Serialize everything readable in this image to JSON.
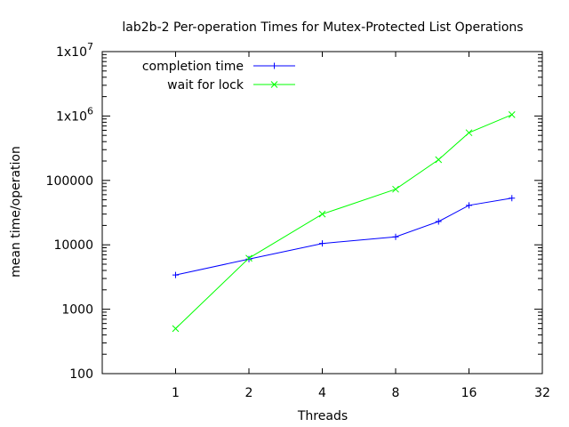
{
  "chart_data": {
    "type": "line",
    "title": "lab2b-2 Per-operation Times for Mutex-Protected List Operations",
    "xlabel": "Threads",
    "ylabel": "mean time/operation",
    "xscale": "log2",
    "yscale": "log10",
    "xlim": [
      0.5,
      32
    ],
    "ylim": [
      100,
      10000000
    ],
    "x_ticks": [
      1,
      2,
      4,
      8,
      16,
      32
    ],
    "x_tick_labels": [
      "1",
      "2",
      "4",
      "8",
      "16",
      "32"
    ],
    "y_ticks": [
      100,
      1000,
      10000,
      100000,
      1000000,
      10000000
    ],
    "y_tick_labels": [
      {
        "base": "100",
        "exp": ""
      },
      {
        "base": "1000",
        "exp": ""
      },
      {
        "base": "10000",
        "exp": ""
      },
      {
        "base": "100000",
        "exp": ""
      },
      {
        "base": "1x10",
        "exp": "6"
      },
      {
        "base": "1x10",
        "exp": "7"
      }
    ],
    "grid": false,
    "legend_position": "top-left",
    "series": [
      {
        "name": "completion time",
        "color": "#0000ff",
        "marker": "plus",
        "x": [
          1,
          2,
          4,
          8,
          12,
          16,
          24
        ],
        "y": [
          3400,
          6000,
          10500,
          13300,
          23000,
          41000,
          53000
        ]
      },
      {
        "name": "wait for lock",
        "color": "#00ff00",
        "marker": "cross",
        "x": [
          1,
          2,
          4,
          8,
          12,
          16,
          24
        ],
        "y": [
          500,
          6200,
          30000,
          73000,
          210000,
          550000,
          1050000
        ]
      }
    ]
  }
}
